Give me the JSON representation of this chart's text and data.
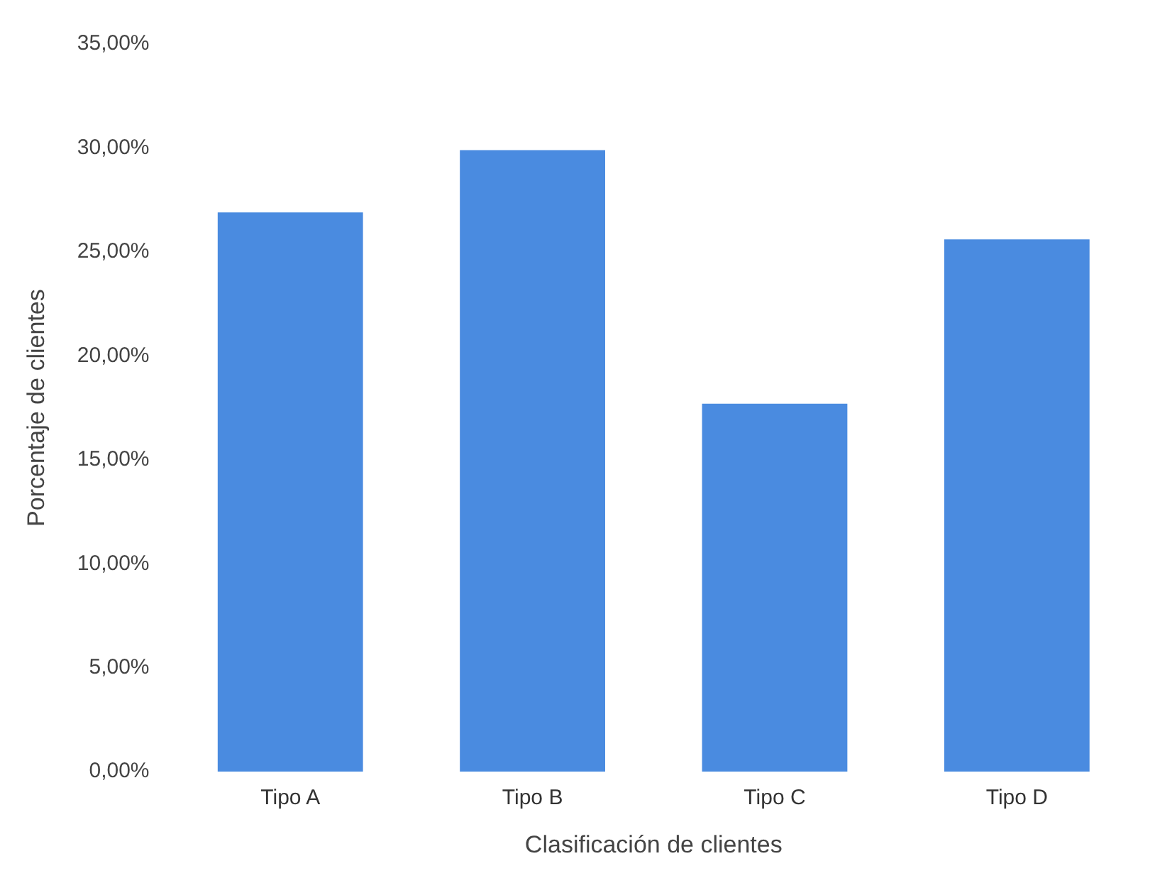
{
  "chart_data": {
    "type": "bar",
    "xlabel": "Clasificación de clientes",
    "ylabel": "Porcentaje de clientes",
    "categories": [
      "Tipo A",
      "Tipo B",
      "Tipo C",
      "Tipo D"
    ],
    "values": [
      26.9,
      29.9,
      17.7,
      25.6
    ],
    "color": "#4a8be0",
    "ylim": [
      0,
      35
    ],
    "yticks": [
      {
        "value": 0,
        "label": "0,00%"
      },
      {
        "value": 5,
        "label": "5,00%"
      },
      {
        "value": 10,
        "label": "10,00%"
      },
      {
        "value": 15,
        "label": "15,00%"
      },
      {
        "value": 20,
        "label": "20,00%"
      },
      {
        "value": 25,
        "label": "25,00%"
      },
      {
        "value": 30,
        "label": "30,00%"
      },
      {
        "value": 35,
        "label": "35,00%"
      }
    ],
    "grid": false,
    "legend": false
  }
}
